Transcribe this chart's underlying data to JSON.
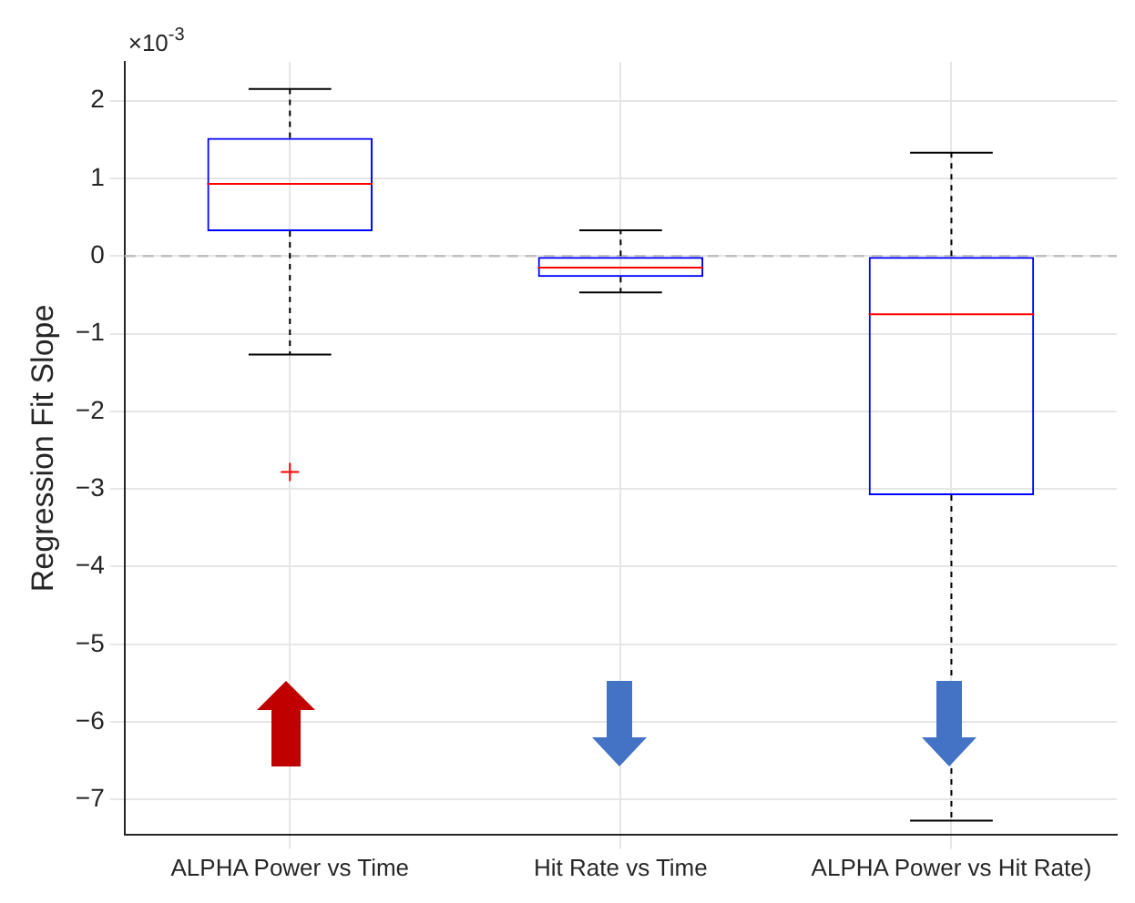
{
  "chart_data": {
    "type": "box",
    "ylabel": "Regression Fit Slope",
    "categories": [
      "ALPHA Power vs Time",
      "Hit Rate vs Time",
      "ALPHA Power vs Hit Rate)"
    ],
    "series": [
      {
        "color": "#0000ff",
        "boxes": [
          {
            "low": -1.27,
            "q1": 0.32,
            "median": 0.93,
            "q3": 1.52,
            "high": 2.15,
            "outliers": [
              -2.78
            ]
          },
          {
            "low": -0.47,
            "q1": -0.27,
            "median": -0.15,
            "q3": 0,
            "high": 0.33
          },
          {
            "low": -7.27,
            "q1": -3.08,
            "median": -0.75,
            "q3": 0,
            "high": 1.33
          }
        ]
      }
    ],
    "ylim": [
      -7.45,
      2.5
    ],
    "yticks": [
      -7,
      -6,
      -5,
      -4,
      -3,
      -2,
      -1,
      0,
      1,
      2
    ],
    "grid": true,
    "ref_lines": [
      {
        "axis": "y",
        "value": 0,
        "color": "#bfbfbf",
        "line_style": "dashed"
      }
    ],
    "annotations": [
      "×10$^{-3}$"
    ]
  }
}
